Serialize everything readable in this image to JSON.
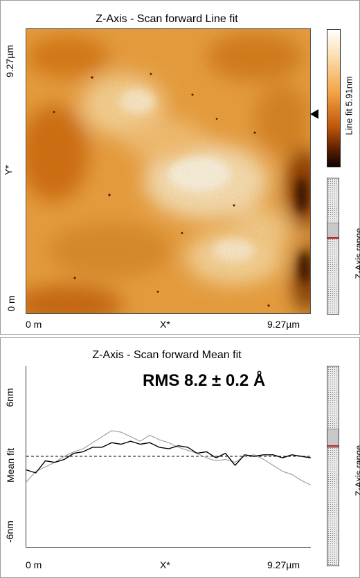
{
  "top": {
    "title": "Z-Axis - Scan forward   Line fit",
    "y_axis_label": "Y*",
    "y_top_tick": "9.27µm",
    "y_bottom_tick": "0 m",
    "x_axis_label": "X*",
    "x_left_tick": "0 m",
    "x_right_tick": "9.27µm",
    "colorbar_label": "Line fit 5.91nm",
    "range_label": "Z-Axis range",
    "colors": {
      "high": "#ffffff",
      "mid": "#f5a54a",
      "low": "#0e0300"
    }
  },
  "bottom": {
    "title": "Z-Axis - Scan forward   Mean fit",
    "y_axis_label": "Mean fit",
    "y_top_tick": "6nm",
    "y_bottom_tick": "-6nm",
    "x_axis_label": "X*",
    "x_left_tick": "0 m",
    "x_right_tick": "9.27µm",
    "rms_text": "RMS 8.2 ± 0.2 Å",
    "range_label": "Z-Axis range"
  },
  "chart_data": {
    "type": "line",
    "xlim": [
      0,
      9.27
    ],
    "ylim": [
      -6,
      6
    ],
    "x": [
      0,
      0.31,
      0.62,
      0.93,
      1.24,
      1.55,
      1.85,
      2.16,
      2.47,
      2.78,
      3.09,
      3.4,
      3.71,
      4.02,
      4.33,
      4.64,
      4.95,
      5.26,
      5.56,
      5.87,
      6.18,
      6.49,
      6.8,
      7.11,
      7.42,
      7.73,
      8.04,
      8.35,
      8.65,
      8.96,
      9.27
    ],
    "series": [
      {
        "color": "#000000",
        "values": [
          -0.9,
          -1.1,
          -0.3,
          -0.4,
          -0.2,
          0.2,
          0.3,
          0.6,
          0.6,
          0.9,
          0.8,
          1.0,
          0.8,
          0.9,
          0.6,
          0.5,
          0.7,
          0.6,
          0.2,
          0.3,
          -0.1,
          0.2,
          -0.6,
          0.1,
          0.0,
          0.1,
          0.1,
          -0.1,
          0.1,
          0.0,
          -0.1
        ]
      },
      {
        "color": "#9a9a9a",
        "values": [
          -1.7,
          -1.0,
          -0.7,
          -0.4,
          0.0,
          0.3,
          0.5,
          0.9,
          1.3,
          1.7,
          1.6,
          1.3,
          1.0,
          1.4,
          1.1,
          0.9,
          0.6,
          0.4,
          0.2,
          -0.1,
          -0.3,
          -0.2,
          -0.4,
          0.0,
          0.1,
          -0.2,
          -0.6,
          -1.0,
          -1.2,
          -1.6,
          -1.9
        ]
      }
    ],
    "reference_line_y": 0,
    "grid": false
  }
}
